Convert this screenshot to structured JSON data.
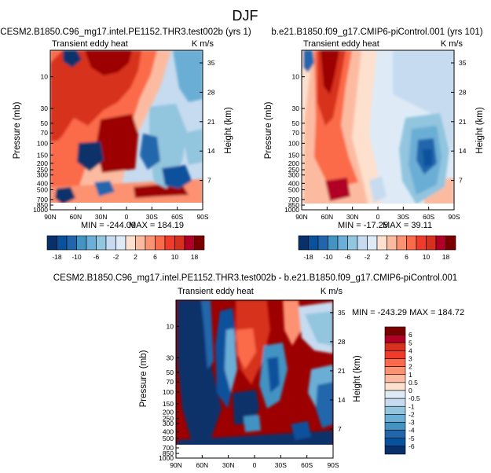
{
  "figure_title": "DJF",
  "colors": {
    "negative": [
      "#08306b",
      "#08519c",
      "#2166ac",
      "#4393c3",
      "#6baed6",
      "#92c5de",
      "#c6dbef",
      "#deebf7"
    ],
    "neutral": "#ffffff",
    "positive": [
      "#fde0ce",
      "#fcbba1",
      "#fc9272",
      "#fb6a4a",
      "#ef3b2c",
      "#d7301f",
      "#b10026",
      "#7a0000"
    ]
  },
  "chart_data": [
    {
      "type": "heatmap",
      "title": "CESM2.B1850.C96_mg17.intel.PE1152.THR3.test002b (yrs 1)",
      "subtitle_left": "Transient eddy heat",
      "subtitle_right": "K m/s",
      "xlabel": "",
      "ylabel": "Pressure (mb)",
      "ylabel_right": "Height (km)",
      "x_ticks": [
        "90N",
        "60N",
        "30N",
        "0",
        "30S",
        "60S",
        "90S"
      ],
      "y_ticks": [
        "10",
        "30",
        "50",
        "70",
        "100",
        "150",
        "200",
        "250",
        "300",
        "400",
        "500",
        "700",
        "850",
        "1000"
      ],
      "y_ticks_right": [
        "35",
        "28",
        "21",
        "14",
        "7"
      ],
      "min_label": "MIN = -244.09",
      "max_label": "MAX = 184.19",
      "colorbar_labels": [
        "-18",
        "-10",
        "-6",
        "-2",
        "2",
        "6",
        "10",
        "18"
      ]
    },
    {
      "type": "heatmap",
      "title": "b.e21.B1850.f09_g17.CMIP6-piControl.001 (yrs 101)",
      "subtitle_left": "Transient eddy heat",
      "subtitle_right": "K m/s",
      "xlabel": "",
      "ylabel": "Pressure (mb)",
      "ylabel_right": "Height (km)",
      "x_ticks": [
        "90N",
        "60N",
        "30N",
        "0",
        "30S",
        "60S",
        "90S"
      ],
      "y_ticks": [
        "10",
        "30",
        "50",
        "70",
        "100",
        "150",
        "200",
        "250",
        "300",
        "400",
        "500",
        "700",
        "850",
        "1000"
      ],
      "y_ticks_right": [
        "35",
        "28",
        "21",
        "14",
        "7"
      ],
      "min_label": "MIN = -17.25",
      "max_label": "MAX = 39.11",
      "colorbar_labels": [
        "-18",
        "-10",
        "-6",
        "-2",
        "2",
        "6",
        "10",
        "18"
      ]
    },
    {
      "type": "heatmap",
      "title": "CESM2.B1850.C96_mg17.intel.PE1152.THR3.test002b - b.e21.B1850.f09_g17.CMIP6-piControl.001",
      "subtitle_left": "Transient eddy heat",
      "subtitle_right": "K m/s",
      "xlabel": "",
      "ylabel": "Pressure (mb)",
      "ylabel_right": "Height (km)",
      "x_ticks": [
        "90N",
        "60N",
        "30N",
        "0",
        "30S",
        "60S",
        "90S"
      ],
      "y_ticks": [
        "10",
        "30",
        "50",
        "70",
        "100",
        "150",
        "200",
        "250",
        "300",
        "400",
        "500",
        "700",
        "850",
        "1000"
      ],
      "y_ticks_right": [
        "35",
        "28",
        "21",
        "14",
        "7"
      ],
      "minmax_label": "MIN = -243.29  MAX = 184.72",
      "colorbar_labels": [
        "6",
        "5",
        "4",
        "3",
        "2",
        "1",
        "0.5",
        "0",
        "-0.5",
        "-1",
        "-2",
        "-3",
        "-4",
        "-5",
        "-6"
      ]
    }
  ]
}
